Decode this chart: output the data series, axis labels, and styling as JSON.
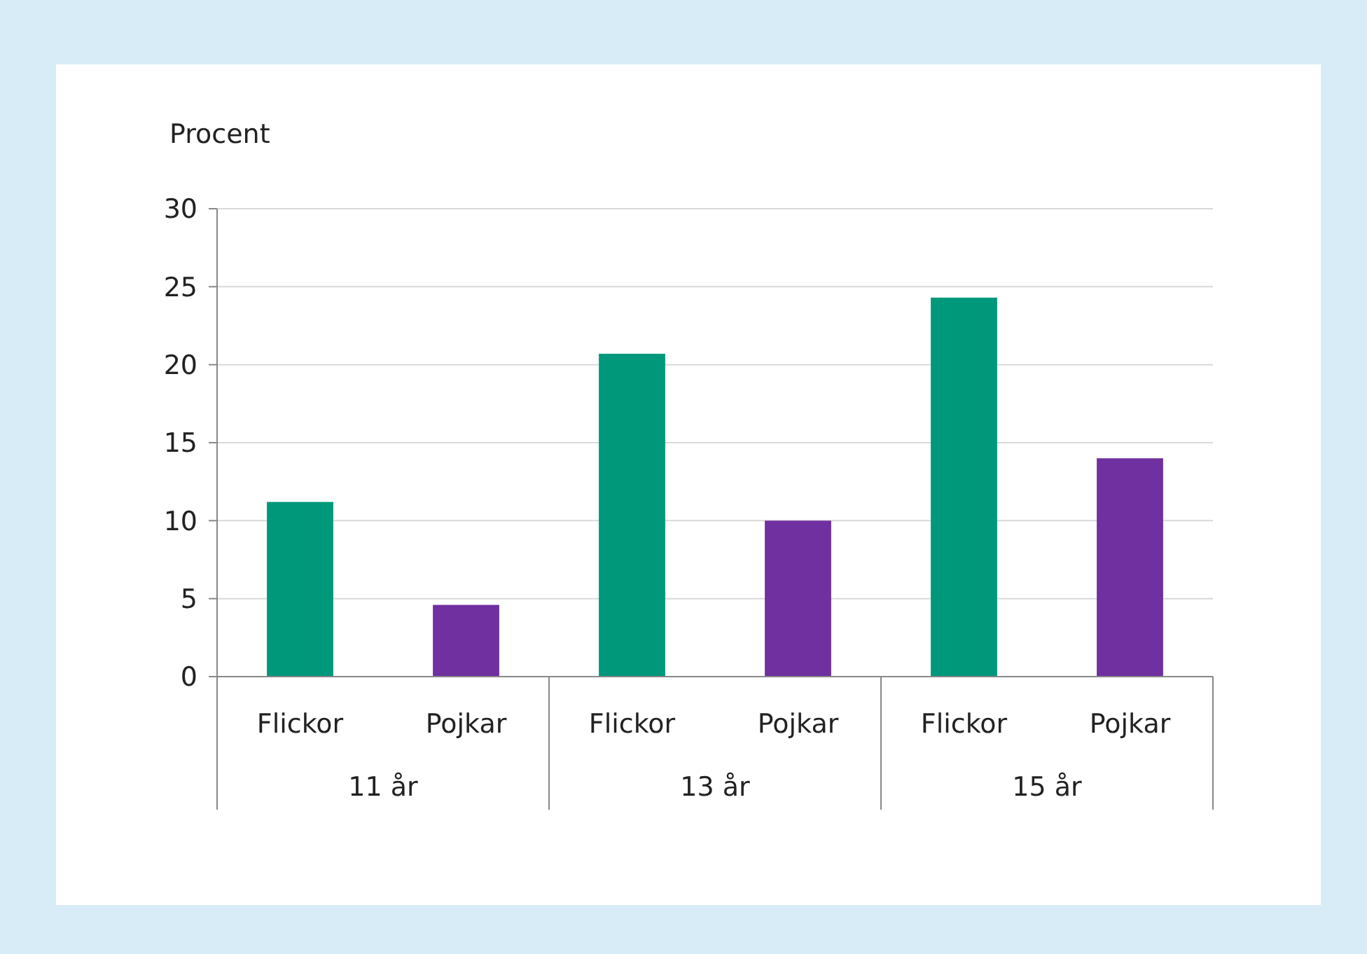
{
  "chart_data": {
    "type": "bar",
    "ylabel": "Procent",
    "categories": [
      "11 år",
      "13 år",
      "15 år"
    ],
    "series": [
      {
        "name": "Flickor",
        "color": "#00987a",
        "values": [
          11.2,
          20.7,
          24.3
        ]
      },
      {
        "name": "Pojkar",
        "color": "#7030a0",
        "values": [
          4.6,
          10.0,
          14.0
        ]
      }
    ],
    "ylim": [
      0,
      30
    ],
    "yticks": [
      0,
      5,
      10,
      15,
      20,
      25,
      30
    ],
    "grid": "y"
  }
}
